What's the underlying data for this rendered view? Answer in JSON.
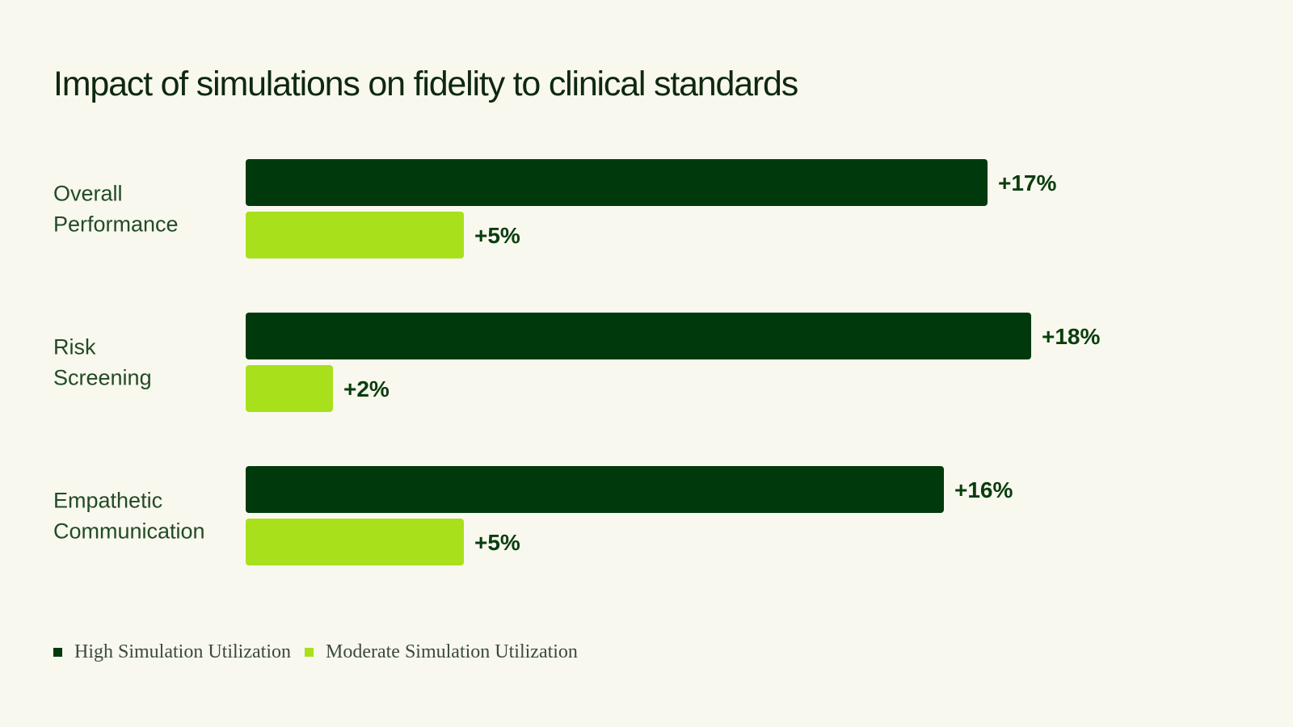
{
  "chart_data": {
    "type": "bar",
    "orientation": "horizontal",
    "title": "Impact of simulations on fidelity to clinical standards",
    "categories": [
      [
        "Overall",
        "Performance"
      ],
      [
        "Risk",
        "Screening"
      ],
      [
        "Empathetic",
        "Communication"
      ]
    ],
    "series": [
      {
        "name": "High Simulation Utilization",
        "color": "#003a0c",
        "values": [
          17,
          18,
          16
        ],
        "labels": [
          "+17%",
          "+18%",
          "+16%"
        ]
      },
      {
        "name": "Moderate Simulation Utilization",
        "color": "#a8e01c",
        "values": [
          5,
          2,
          5
        ],
        "labels": [
          "+5%",
          "+2%",
          "+5%"
        ]
      }
    ],
    "xlim": [
      0,
      18
    ],
    "grid": false,
    "legend_position": "bottom-left"
  }
}
